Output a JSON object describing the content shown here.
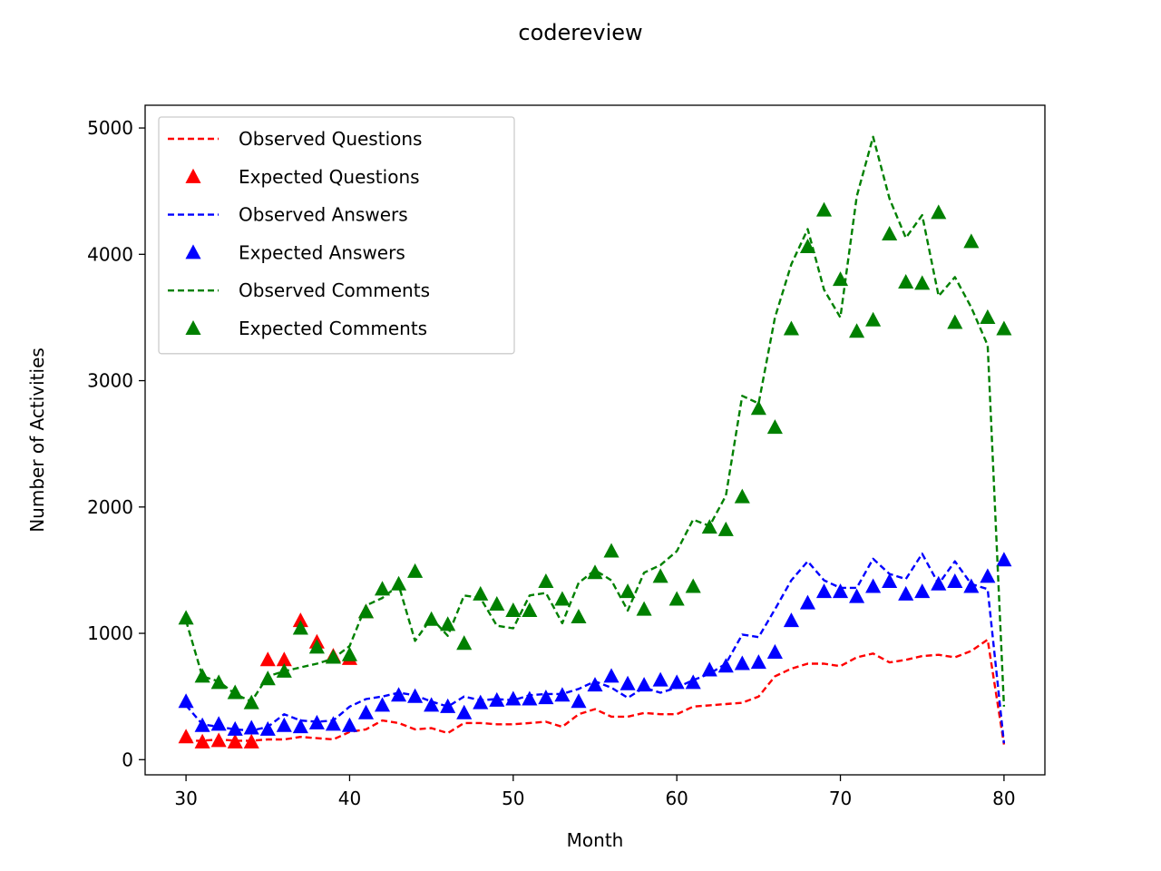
{
  "chart_data": {
    "type": "line",
    "title": "codereview",
    "xlabel": "Month",
    "ylabel": "Number of Activities",
    "xlim": [
      27.5,
      82.5
    ],
    "ylim": [
      -120,
      5180
    ],
    "xticks": [
      30,
      40,
      50,
      60,
      70,
      80
    ],
    "yticks": [
      0,
      1000,
      2000,
      3000,
      4000,
      5000
    ],
    "grid": false,
    "legend_position": "upper-left",
    "series": [
      {
        "name": "Observed Questions",
        "style": "dashed-line",
        "color": "#ff0000",
        "x": [
          30,
          31,
          32,
          33,
          34,
          35,
          36,
          37,
          38,
          39,
          40,
          41,
          42,
          43,
          44,
          45,
          46,
          47,
          48,
          49,
          50,
          51,
          52,
          53,
          54,
          55,
          56,
          57,
          58,
          59,
          60,
          61,
          62,
          63,
          64,
          65,
          66,
          67,
          68,
          69,
          70,
          71,
          72,
          73,
          74,
          75,
          76,
          77,
          78,
          79,
          80
        ],
        "y": [
          150,
          150,
          160,
          150,
          150,
          160,
          160,
          180,
          170,
          160,
          220,
          240,
          310,
          290,
          240,
          250,
          210,
          290,
          290,
          280,
          280,
          290,
          300,
          260,
          360,
          400,
          340,
          340,
          370,
          360,
          360,
          420,
          430,
          440,
          450,
          500,
          660,
          720,
          760,
          760,
          740,
          810,
          840,
          770,
          790,
          820,
          830,
          810,
          860,
          950,
          120
        ]
      },
      {
        "name": "Expected Questions",
        "style": "triangle-marker",
        "color": "#ff0000",
        "x": [
          30,
          31,
          32,
          33,
          34,
          35,
          36,
          37,
          38,
          39,
          40,
          41
        ],
        "y": [
          180,
          140,
          150,
          140,
          140,
          790,
          790,
          1100,
          930,
          820,
          800,
          1170
        ]
      },
      {
        "name": "Observed Answers",
        "style": "dashed-line",
        "color": "#0000ff",
        "x": [
          30,
          31,
          32,
          33,
          34,
          35,
          36,
          37,
          38,
          39,
          40,
          41,
          42,
          43,
          44,
          45,
          46,
          47,
          48,
          49,
          50,
          51,
          52,
          53,
          54,
          55,
          56,
          57,
          58,
          59,
          60,
          61,
          62,
          63,
          64,
          65,
          66,
          67,
          68,
          69,
          70,
          71,
          72,
          73,
          74,
          75,
          76,
          77,
          78,
          79,
          80
        ],
        "y": [
          430,
          280,
          260,
          240,
          230,
          260,
          360,
          310,
          300,
          310,
          420,
          480,
          500,
          530,
          510,
          460,
          420,
          500,
          470,
          480,
          470,
          510,
          520,
          520,
          560,
          620,
          570,
          490,
          570,
          530,
          570,
          630,
          680,
          760,
          990,
          970,
          1190,
          1420,
          1570,
          1420,
          1360,
          1360,
          1590,
          1470,
          1430,
          1630,
          1390,
          1570,
          1390,
          1350,
          130
        ]
      },
      {
        "name": "Expected Answers",
        "style": "triangle-marker",
        "color": "#0000ff",
        "x": [
          30,
          31,
          32,
          33,
          34,
          35,
          36,
          37,
          38,
          39,
          40,
          41,
          42,
          43,
          44,
          45,
          46,
          47,
          48,
          49,
          50,
          51,
          52,
          53,
          54,
          55,
          56,
          57,
          58,
          59,
          60,
          61,
          62,
          63,
          64,
          65,
          66,
          67,
          68,
          69,
          70,
          71,
          72,
          73,
          74,
          75,
          76,
          77,
          78,
          79,
          80
        ],
        "y": [
          460,
          270,
          280,
          240,
          250,
          240,
          270,
          260,
          290,
          280,
          270,
          370,
          430,
          510,
          500,
          430,
          420,
          370,
          450,
          470,
          480,
          480,
          490,
          510,
          460,
          590,
          660,
          600,
          590,
          630,
          610,
          610,
          710,
          740,
          760,
          770,
          850,
          1100,
          1240,
          1330,
          1330,
          1290,
          1370,
          1410,
          1310,
          1330,
          1390,
          1410,
          1370,
          1450,
          1580
        ]
      },
      {
        "name": "Observed Comments",
        "style": "dashed-line",
        "color": "#008000",
        "x": [
          30,
          31,
          32,
          33,
          34,
          35,
          36,
          37,
          38,
          39,
          40,
          41,
          42,
          43,
          44,
          45,
          46,
          47,
          48,
          49,
          50,
          51,
          52,
          53,
          54,
          55,
          56,
          57,
          58,
          59,
          60,
          61,
          62,
          63,
          64,
          65,
          66,
          67,
          68,
          69,
          70,
          71,
          72,
          73,
          74,
          75,
          76,
          77,
          78,
          79,
          80
        ],
        "y": [
          1100,
          660,
          620,
          520,
          460,
          660,
          700,
          730,
          760,
          800,
          900,
          1220,
          1280,
          1380,
          940,
          1120,
          980,
          1300,
          1280,
          1060,
          1040,
          1300,
          1320,
          1080,
          1400,
          1500,
          1420,
          1180,
          1480,
          1540,
          1650,
          1900,
          1850,
          2090,
          2880,
          2820,
          3500,
          3920,
          4200,
          3720,
          3500,
          4460,
          4930,
          4440,
          4130,
          4310,
          3670,
          3820,
          3580,
          3280,
          420
        ]
      },
      {
        "name": "Expected Comments",
        "style": "triangle-marker",
        "color": "#008000",
        "x": [
          30,
          31,
          32,
          33,
          34,
          35,
          36,
          37,
          38,
          39,
          40,
          41,
          42,
          43,
          44,
          45,
          46,
          47,
          48,
          49,
          50,
          51,
          52,
          53,
          54,
          55,
          56,
          57,
          58,
          59,
          60,
          61,
          62,
          63,
          64,
          65,
          66,
          67,
          68,
          69,
          70,
          71,
          72,
          73,
          74,
          75,
          76,
          77,
          78,
          79,
          80
        ],
        "y": [
          1120,
          660,
          610,
          530,
          450,
          640,
          700,
          1040,
          890,
          810,
          830,
          1170,
          1350,
          1390,
          1490,
          1110,
          1070,
          920,
          1310,
          1230,
          1180,
          1180,
          1410,
          1270,
          1130,
          1480,
          1650,
          1330,
          1190,
          1450,
          1270,
          1370,
          1840,
          1820,
          2080,
          2780,
          2630,
          3410,
          4060,
          4350,
          3800,
          3390,
          3480,
          4160,
          3780,
          3770,
          4330,
          3460,
          4100,
          3500,
          3410
        ]
      }
    ]
  }
}
